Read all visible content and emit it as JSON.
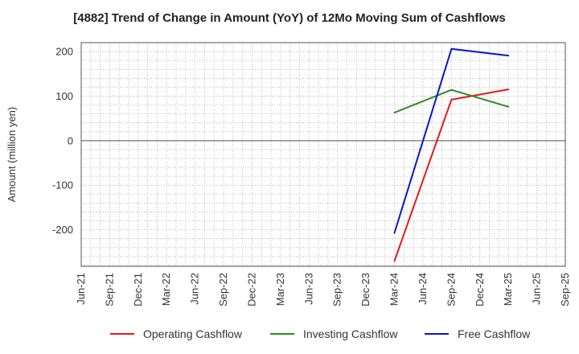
{
  "chart_data": {
    "type": "line",
    "title": "[4882]  Trend of Change in Amount (YoY) of 12Mo Moving Sum of Cashflows",
    "xlabel": "",
    "ylabel": "Amount (million yen)",
    "ylim": [
      -282,
      220
    ],
    "yticks": [
      200,
      100,
      0,
      -100,
      -200
    ],
    "categories": [
      "Jun-21",
      "Sep-21",
      "Dec-21",
      "Mar-22",
      "Jun-22",
      "Sep-22",
      "Dec-22",
      "Mar-23",
      "Jun-23",
      "Sep-23",
      "Dec-23",
      "Mar-24",
      "Jun-24",
      "Sep-24",
      "Dec-24",
      "Mar-25",
      "Jun-25",
      "Sep-25"
    ],
    "grid": true,
    "legend_position": "bottom",
    "series": [
      {
        "name": "Operating Cashflow",
        "color": "#e31a1c",
        "points": [
          [
            "Mar-24",
            -270
          ],
          [
            "Sep-24",
            92
          ],
          [
            "Mar-25",
            115
          ]
        ]
      },
      {
        "name": "Investing Cashflow",
        "color": "#2e8b22",
        "points": [
          [
            "Mar-24",
            63
          ],
          [
            "Sep-24",
            114
          ],
          [
            "Mar-25",
            76
          ]
        ]
      },
      {
        "name": "Free Cashflow",
        "color": "#0a14c8",
        "points": [
          [
            "Mar-24",
            -207
          ],
          [
            "Sep-24",
            206
          ],
          [
            "Mar-25",
            191
          ]
        ]
      }
    ]
  }
}
